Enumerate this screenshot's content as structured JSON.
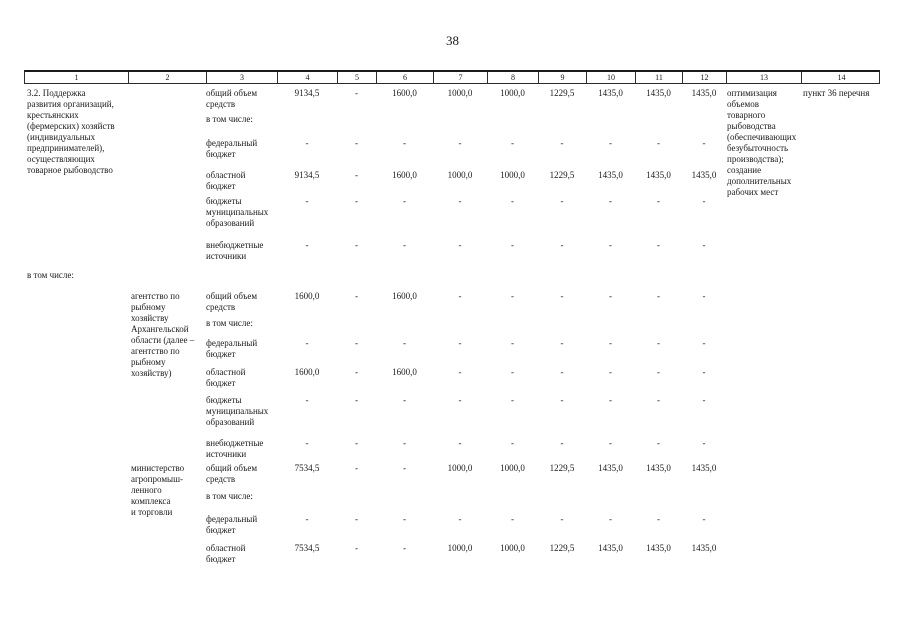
{
  "page": {
    "number": "38"
  },
  "table": {
    "header_columns": [
      "1",
      "2",
      "3",
      "4",
      "5",
      "6",
      "7",
      "8",
      "9",
      "10",
      "11",
      "12",
      "13",
      "14"
    ],
    "section_title": "3.2. Поддержка\nразвития организаций,\nкрестьянских\n(фермерских) хозяйств\n(индивидуальных\nпредпринимателей),\nосуществляющих\nтоварное рыбоводство",
    "breakdown_label": "в том числе:",
    "in_total_label": "в том числе:",
    "executors": {
      "agency": "агентство по\nрыбному\nхозяйству\nАрхангельской\nобласти (далее –\nагентство по\nрыбному\nхозяйству)",
      "ministry": "министерство\nагропромыш-\nленного\nкомплекса\nи торговли"
    },
    "expected_results": "оптимизация\nобъемов\nтоварного\nрыбоводства\n(обеспечивающих\nбезубыточность\nпроизводства);\nсоздание\nдополнительных\nрабочих мест",
    "reference": "пункт 36 перечня",
    "rows": {
      "total": [
        {
          "label": "общий объем\nсредств",
          "values": [
            "9134,5",
            "-",
            "1600,0",
            "1000,0",
            "1000,0",
            "1229,5",
            "1435,0",
            "1435,0",
            "1435,0"
          ]
        },
        {
          "label": "федеральный\nбюджет",
          "values": [
            "-",
            "-",
            "-",
            "-",
            "-",
            "-",
            "-",
            "-",
            "-"
          ]
        },
        {
          "label": "областной\nбюджет",
          "values": [
            "9134,5",
            "-",
            "1600,0",
            "1000,0",
            "1000,0",
            "1229,5",
            "1435,0",
            "1435,0",
            "1435,0"
          ]
        },
        {
          "label": "бюджеты\nмуниципальных\nобразований",
          "values": [
            "-",
            "-",
            "-",
            "-",
            "-",
            "-",
            "-",
            "-",
            "-"
          ]
        },
        {
          "label": "внебюджетные\nисточники",
          "values": [
            "-",
            "-",
            "-",
            "-",
            "-",
            "-",
            "-",
            "-",
            "-"
          ]
        }
      ],
      "agency": [
        {
          "label": "общий объем\nсредств",
          "values": [
            "1600,0",
            "-",
            "1600,0",
            "-",
            "-",
            "-",
            "-",
            "-",
            "-"
          ]
        },
        {
          "label": "федеральный\nбюджет",
          "values": [
            "-",
            "-",
            "-",
            "-",
            "-",
            "-",
            "-",
            "-",
            "-"
          ]
        },
        {
          "label": "областной\nбюджет",
          "values": [
            "1600,0",
            "-",
            "1600,0",
            "-",
            "-",
            "-",
            "-",
            "-",
            "-"
          ]
        },
        {
          "label": "бюджеты\nмуниципальных\nобразований",
          "values": [
            "-",
            "-",
            "-",
            "-",
            "-",
            "-",
            "-",
            "-",
            "-"
          ]
        },
        {
          "label": "внебюджетные\nисточники",
          "values": [
            "-",
            "-",
            "-",
            "-",
            "-",
            "-",
            "-",
            "-",
            "-"
          ]
        }
      ],
      "ministry": [
        {
          "label": "общий объем\nсредств",
          "values": [
            "7534,5",
            "-",
            "-",
            "1000,0",
            "1000,0",
            "1229,5",
            "1435,0",
            "1435,0",
            "1435,0"
          ]
        },
        {
          "label": "федеральный\nбюджет",
          "values": [
            "-",
            "-",
            "-",
            "-",
            "-",
            "-",
            "-",
            "-",
            "-"
          ]
        },
        {
          "label": "областной\nбюджет",
          "values": [
            "7534,5",
            "-",
            "-",
            "1000,0",
            "1000,0",
            "1229,5",
            "1435,0",
            "1435,0",
            "1435,0"
          ]
        }
      ]
    }
  }
}
